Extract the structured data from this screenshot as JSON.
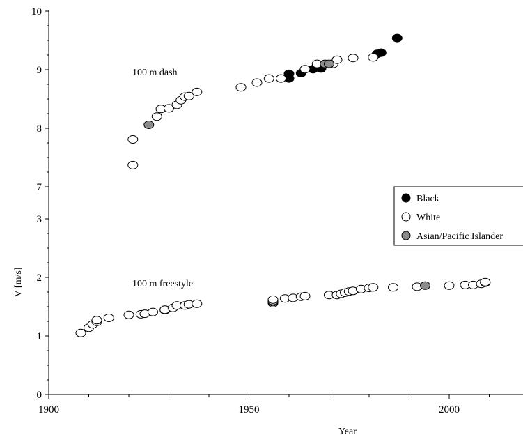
{
  "chart_data": {
    "type": "scatter",
    "xlabel": "Year",
    "ylabel": "V [m/s]",
    "xlim": [
      1900,
      2020
    ],
    "x_ticks": [
      "1900",
      "1950",
      "2000"
    ],
    "colors": {
      "Black": "#000000",
      "White": "#ffffff",
      "Asian/Pacific Islander": "#8c8c8c"
    },
    "legend": {
      "placement": "right",
      "entries": [
        "Black",
        "White",
        "Asian/Pacific Islander"
      ]
    },
    "panels": [
      {
        "annotation": "100 m dash",
        "ylim": [
          7,
          10
        ],
        "y_ticks": [
          "7",
          "8",
          "9",
          "10"
        ],
        "series": [
          {
            "name": "Black",
            "points": [
              [
                1960,
                8.85
              ],
              [
                1960,
                8.93
              ],
              [
                1963,
                8.94
              ],
              [
                1966,
                9.01
              ],
              [
                1968,
                9.02
              ],
              [
                1982,
                9.27
              ],
              [
                1983,
                9.29
              ],
              [
                1987,
                9.54
              ]
            ]
          },
          {
            "name": "White",
            "points": [
              [
                1921,
                7.37
              ],
              [
                1921,
                7.81
              ],
              [
                1927,
                8.2
              ],
              [
                1928,
                8.33
              ],
              [
                1930,
                8.34
              ],
              [
                1932,
                8.4
              ],
              [
                1933,
                8.48
              ],
              [
                1934,
                8.54
              ],
              [
                1935,
                8.55
              ],
              [
                1937,
                8.62
              ],
              [
                1948,
                8.7
              ],
              [
                1952,
                8.78
              ],
              [
                1955,
                8.85
              ],
              [
                1958,
                8.85
              ],
              [
                1964,
                9.01
              ],
              [
                1967,
                9.1
              ],
              [
                1971,
                9.1
              ],
              [
                1972,
                9.17
              ],
              [
                1976,
                9.2
              ],
              [
                1981,
                9.21
              ]
            ]
          },
          {
            "name": "Asian/Pacific Islander",
            "points": [
              [
                1925,
                8.06
              ],
              [
                1969,
                9.1
              ],
              [
                1970,
                9.1
              ]
            ]
          }
        ]
      },
      {
        "annotation": "100 m freestyle",
        "ylim": [
          0,
          3
        ],
        "y_ticks": [
          "0",
          "1",
          "2",
          "3"
        ],
        "series": [
          {
            "name": "White",
            "points": [
              [
                1908,
                1.05
              ],
              [
                1910,
                1.14
              ],
              [
                1911,
                1.2
              ],
              [
                1912,
                1.24
              ],
              [
                1912,
                1.27
              ],
              [
                1915,
                1.31
              ],
              [
                1920,
                1.36
              ],
              [
                1923,
                1.37
              ],
              [
                1924,
                1.38
              ],
              [
                1926,
                1.41
              ],
              [
                1929,
                1.44
              ],
              [
                1929,
                1.45
              ],
              [
                1931,
                1.48
              ],
              [
                1932,
                1.52
              ],
              [
                1934,
                1.52
              ],
              [
                1935,
                1.54
              ],
              [
                1937,
                1.55
              ],
              [
                1956,
                1.56
              ],
              [
                1956,
                1.58
              ],
              [
                1956,
                1.6
              ],
              [
                1956,
                1.62
              ],
              [
                1959,
                1.64
              ],
              [
                1961,
                1.65
              ],
              [
                1963,
                1.67
              ],
              [
                1964,
                1.68
              ],
              [
                1970,
                1.7
              ],
              [
                1972,
                1.7
              ],
              [
                1973,
                1.72
              ],
              [
                1974,
                1.74
              ],
              [
                1975,
                1.76
              ],
              [
                1976,
                1.77
              ],
              [
                1978,
                1.8
              ],
              [
                1980,
                1.82
              ],
              [
                1981,
                1.83
              ],
              [
                1986,
                1.83
              ],
              [
                1992,
                1.84
              ],
              [
                2000,
                1.86
              ],
              [
                2004,
                1.87
              ],
              [
                2006,
                1.87
              ],
              [
                2008,
                1.89
              ],
              [
                2009,
                1.91
              ],
              [
                2009,
                1.92
              ]
            ]
          },
          {
            "name": "Asian/Pacific Islander",
            "points": [
              [
                1994,
                1.86
              ]
            ]
          }
        ]
      }
    ]
  }
}
